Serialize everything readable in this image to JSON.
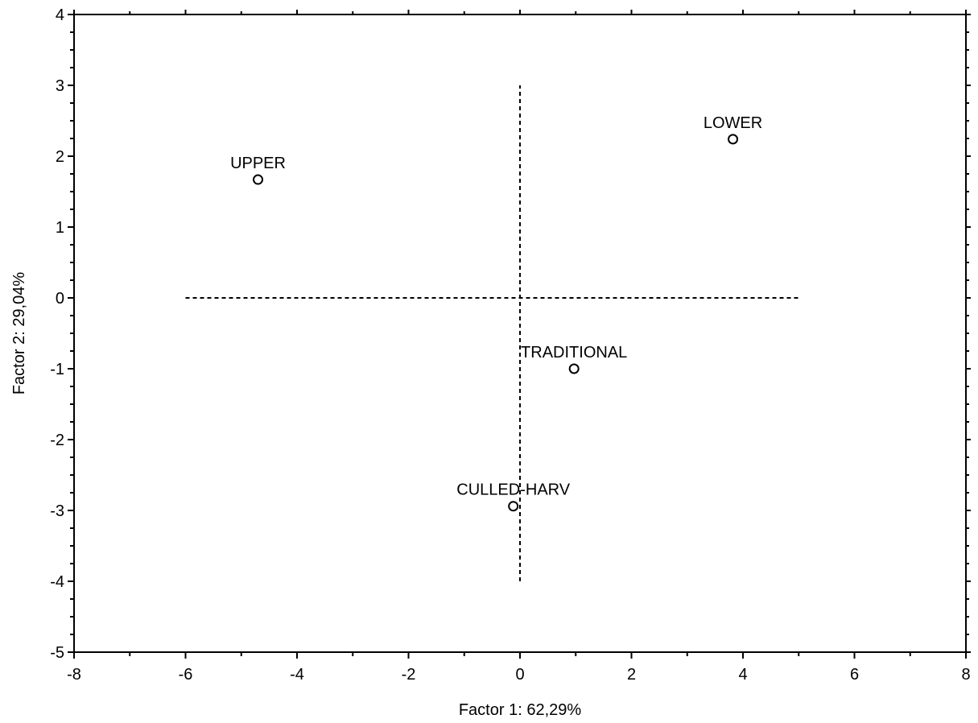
{
  "chart_data": {
    "type": "scatter",
    "xlabel": "Factor 1: 62,29%",
    "ylabel": "Factor 2: 29,04%",
    "xlim": [
      -8,
      8
    ],
    "ylim": [
      -5,
      4
    ],
    "x_ticks": [
      -8,
      -6,
      -4,
      -2,
      0,
      2,
      4,
      6,
      8
    ],
    "y_ticks": [
      -5,
      -4,
      -3,
      -2,
      -1,
      0,
      1,
      2,
      3,
      4
    ],
    "grid": false,
    "points": [
      {
        "label": "UPPER",
        "x": -4.7,
        "y": 1.67
      },
      {
        "label": "LOWER",
        "x": 3.82,
        "y": 2.24
      },
      {
        "label": "TRADITIONAL",
        "x": 0.97,
        "y": -1.0
      },
      {
        "label": "CULLED-HARV",
        "x": -0.12,
        "y": -2.94
      }
    ],
    "reference_lines": {
      "horizontal": {
        "y": 0,
        "x_from": -6,
        "x_to": 5,
        "style": "dashed"
      },
      "vertical": {
        "x": 0,
        "y_from": -4,
        "y_to": 3,
        "style": "dashed"
      }
    },
    "colors": {
      "axis": "#000000",
      "marker_fill": "#ffffff",
      "marker_stroke": "#000000"
    }
  }
}
